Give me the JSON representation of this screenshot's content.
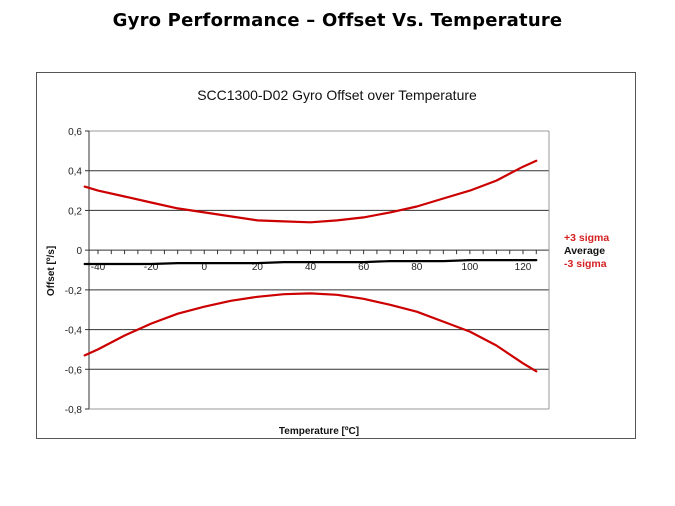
{
  "slide": {
    "title": "Gyro Performance – Offset Vs. Temperature"
  },
  "colors": {
    "sigma": "#cc0000",
    "average": "#000000",
    "gridline": "#333333",
    "legend_sigma_text": "#d42020"
  },
  "chart_data": {
    "type": "line",
    "title": "SCC1300-D02 Gyro Offset over Temperature",
    "xlabel": "Temperature [ºC]",
    "ylabel": "Offset [º/s]",
    "xlim": [
      -45,
      125
    ],
    "ylim": [
      -0.8,
      0.6
    ],
    "x_ticks": [
      "-40",
      "-20",
      "0",
      "20",
      "40",
      "60",
      "80",
      "100",
      "120"
    ],
    "y_ticks": [
      "0,6",
      "0,4",
      "0,2",
      "0",
      "-0,2",
      "-0,4",
      "-0,6",
      "-0,8"
    ],
    "grid": true,
    "legend_position": "right",
    "x": [
      -45,
      -40,
      -30,
      -20,
      -10,
      0,
      10,
      20,
      30,
      40,
      50,
      60,
      70,
      80,
      90,
      100,
      110,
      120,
      125
    ],
    "series": [
      {
        "name": "+3 sigma",
        "color": "#cc0000",
        "values": [
          0.32,
          0.3,
          0.27,
          0.24,
          0.21,
          0.19,
          0.17,
          0.15,
          0.145,
          0.14,
          0.15,
          0.165,
          0.19,
          0.22,
          0.26,
          0.3,
          0.35,
          0.42,
          0.45
        ]
      },
      {
        "name": "Average",
        "color": "#000000",
        "values": [
          -0.07,
          -0.07,
          -0.07,
          -0.07,
          -0.065,
          -0.065,
          -0.065,
          -0.065,
          -0.06,
          -0.06,
          -0.06,
          -0.06,
          -0.055,
          -0.055,
          -0.055,
          -0.05,
          -0.05,
          -0.05,
          -0.05
        ]
      },
      {
        "name": "-3 sigma",
        "color": "#cc0000",
        "values": [
          -0.53,
          -0.5,
          -0.43,
          -0.37,
          -0.32,
          -0.285,
          -0.255,
          -0.235,
          -0.222,
          -0.218,
          -0.225,
          -0.245,
          -0.275,
          -0.31,
          -0.36,
          -0.41,
          -0.48,
          -0.57,
          -0.61
        ]
      }
    ]
  }
}
